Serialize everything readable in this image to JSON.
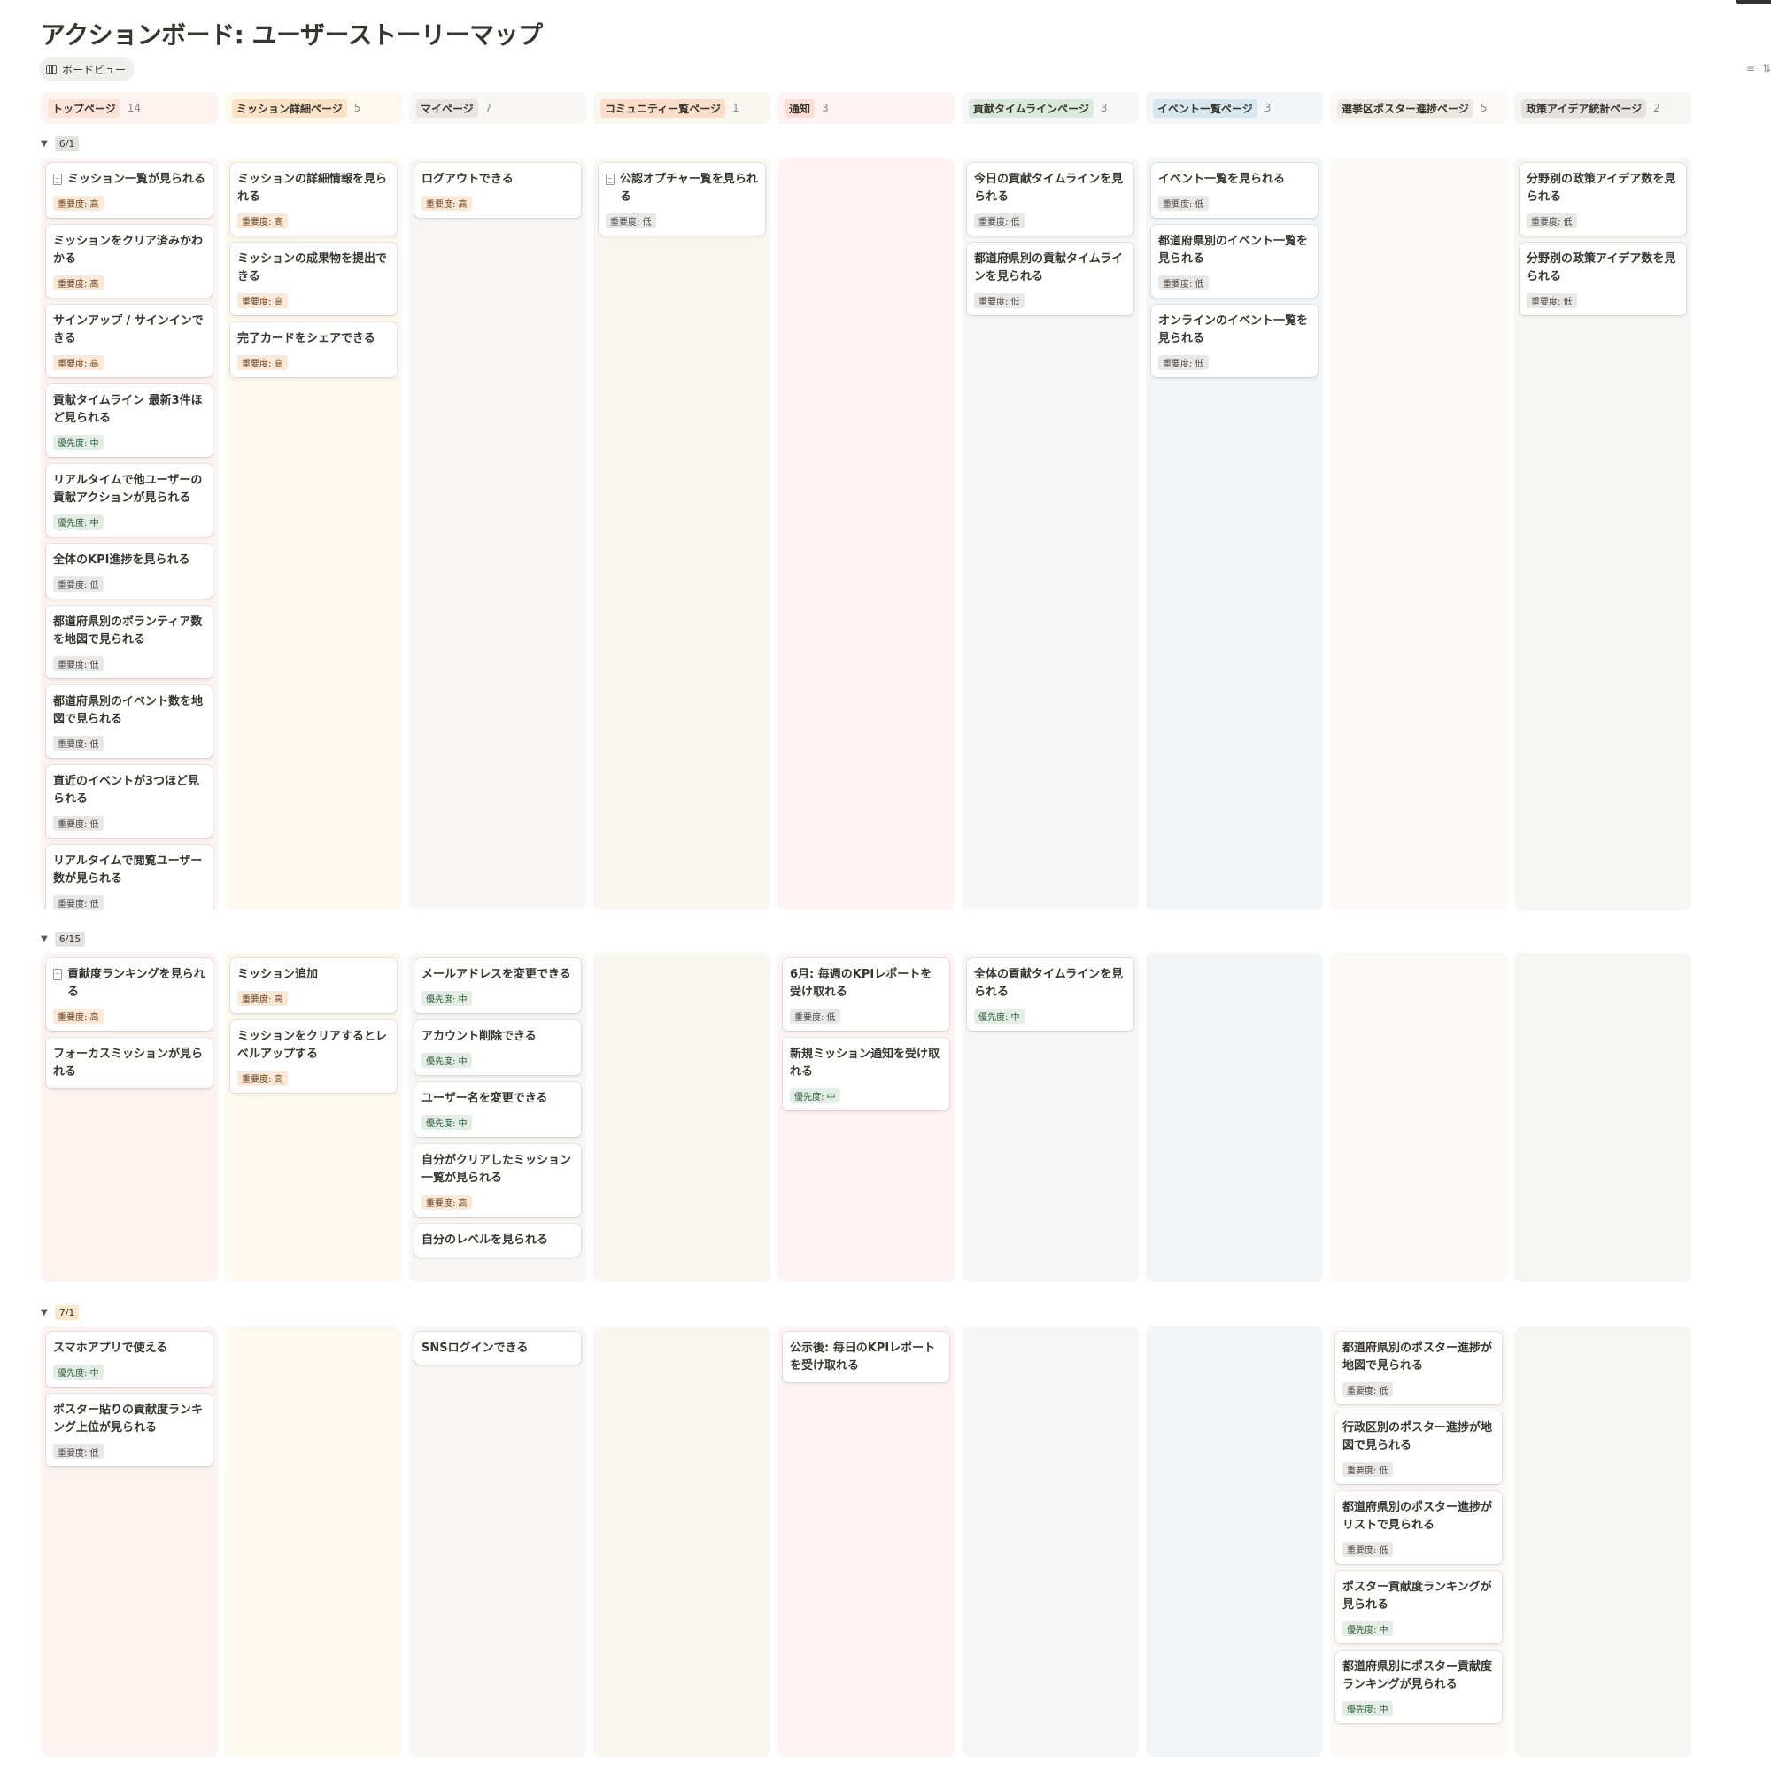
{
  "title": "アクションボード: ユーザーストーリーマップ",
  "view": {
    "label": "ボードビュー",
    "icon": "board-view-icon"
  },
  "toolbar": {
    "filter_icon": "≡",
    "sort_icon": "⇅"
  },
  "colors": {
    "high_badge": "#fae8d8",
    "low_badge": "#e9e8e6",
    "mid_badge": "#e4eee6"
  },
  "columns": [
    {
      "name": "トップページ",
      "count": "14",
      "tag_bg": "#fce3d8",
      "bg": "#fdf4f2"
    },
    {
      "name": "ミッション詳細ページ",
      "count": "5",
      "tag_bg": "#fae2c6",
      "bg": "#fdf9ee"
    },
    {
      "name": "マイページ",
      "count": "7",
      "tag_bg": "#e9e5e3",
      "bg": "#f8f7f5"
    },
    {
      "name": "コミュニティー覧ページ",
      "count": "1",
      "tag_bg": "#fadec9",
      "bg": "#faf6f0"
    },
    {
      "name": "通知",
      "count": "3",
      "tag_bg": "#fbdfd6",
      "bg": "#fdf4f3"
    },
    {
      "name": "貢献タイムラインページ",
      "count": "3",
      "tag_bg": "#dbe8dc",
      "bg": "#f6f7f6"
    },
    {
      "name": "イベント一覧ページ",
      "count": "3",
      "tag_bg": "#d8e6ee",
      "bg": "#f2f6f8"
    },
    {
      "name": "選挙区ポスター進捗ページ",
      "count": "5",
      "tag_bg": "#ece8e4",
      "bg": "#fcf8f8"
    },
    {
      "name": "政策アイデア統計ページ",
      "count": "2",
      "tag_bg": "#e4e2e0",
      "bg": "#f6f6f5"
    }
  ],
  "groups": [
    {
      "label": "6/1",
      "lanes": [
        [
          {
            "title": "ミッション一覧が見られる",
            "doc": true,
            "badge": "重要度: 高",
            "level": "high"
          },
          {
            "title": "ミッションをクリア済みかわかる",
            "badge": "重要度: 高",
            "level": "high"
          },
          {
            "title": "サインアップ / サインインできる",
            "badge": "重要度: 高",
            "level": "high"
          },
          {
            "title": "貢献タイムライン 最新3件ほど見られる",
            "badge": "優先度: 中",
            "level": "mid"
          },
          {
            "title": "リアルタイムで他ユーザーの貢献アクションが見られる",
            "badge": "優先度: 中",
            "level": "mid"
          },
          {
            "title": "全体のKPI進捗を見られる",
            "badge": "重要度: 低",
            "level": "low"
          },
          {
            "title": "都道府県別のボランティア数を地図で見られる",
            "badge": "重要度: 低",
            "level": "low"
          },
          {
            "title": "都道府県別のイベント数を地図で見られる",
            "badge": "重要度: 低",
            "level": "low"
          },
          {
            "title": "直近のイベントが3つほど見られる",
            "badge": "重要度: 低",
            "level": "low"
          },
          {
            "title": "リアルタイムで閲覧ユーザー数が見られる",
            "badge": "重要度: 低",
            "level": "low"
          }
        ],
        [
          {
            "title": "ミッションの詳細情報を見られる",
            "badge": "重要度: 高",
            "level": "high"
          },
          {
            "title": "ミッションの成果物を提出できる",
            "badge": "重要度: 高",
            "level": "high"
          },
          {
            "title": "完了カードをシェアできる",
            "badge": "重要度: 高",
            "level": "high"
          }
        ],
        [
          {
            "title": "ログアウトできる",
            "badge": "重要度: 高",
            "level": "high"
          }
        ],
        [
          {
            "title": "公認オプチャー覧を見られる",
            "doc": true,
            "badge": "重要度: 低",
            "level": "low"
          }
        ],
        [],
        [
          {
            "title": "今日の貢献タイムラインを見られる",
            "badge": "重要度: 低",
            "level": "low"
          },
          {
            "title": "都道府県別の貢献タイムラインを見られる",
            "badge": "重要度: 低",
            "level": "low"
          }
        ],
        [
          {
            "title": "イベント一覧を見られる",
            "badge": "重要度: 低",
            "level": "low"
          },
          {
            "title": "都道府県別のイベント一覧を見られる",
            "badge": "重要度: 低",
            "level": "low"
          },
          {
            "title": "オンラインのイベント一覧を見られる",
            "badge": "重要度: 低",
            "level": "low"
          }
        ],
        [],
        [
          {
            "title": "分野別の政策アイデア数を見られる",
            "badge": "重要度: 低",
            "level": "low"
          },
          {
            "title": "分野別の政策アイデア数を見られる",
            "badge": "重要度: 低",
            "level": "low"
          }
        ]
      ]
    },
    {
      "label": "6/15",
      "lanes": [
        [
          {
            "title": "貢献度ランキングを見られる",
            "doc": true,
            "badge": "重要度: 高",
            "level": "high"
          },
          {
            "title": "フォーカスミッションが見られる"
          }
        ],
        [
          {
            "title": "ミッション追加",
            "badge": "重要度: 高",
            "level": "high"
          },
          {
            "title": "ミッションをクリアするとレベルアップする",
            "badge": "重要度: 高",
            "level": "high"
          }
        ],
        [
          {
            "title": "メールアドレスを変更できる",
            "badge": "優先度: 中",
            "level": "mid"
          },
          {
            "title": "アカウント削除できる",
            "badge": "優先度: 中",
            "level": "mid"
          },
          {
            "title": "ユーザー名を変更できる",
            "badge": "優先度: 中",
            "level": "mid"
          },
          {
            "title": "自分がクリアしたミッション一覧が見られる",
            "badge": "重要度: 高",
            "level": "high"
          },
          {
            "title": "自分のレベルを見られる"
          }
        ],
        [],
        [
          {
            "title": "6月: 毎週のKPIレポートを受け取れる",
            "badge": "重要度: 低",
            "level": "low"
          },
          {
            "title": "新規ミッション通知を受け取れる",
            "badge": "優先度: 中",
            "level": "mid"
          }
        ],
        [
          {
            "title": "全体の貢献タイムラインを見られる",
            "badge": "優先度: 中",
            "level": "mid"
          }
        ],
        [],
        [],
        []
      ]
    },
    {
      "label": "7/1",
      "lanes": [
        [
          {
            "title": "スマホアプリで使える",
            "badge": "優先度: 中",
            "level": "mid"
          },
          {
            "title": "ポスター貼りの貢献度ランキング上位が見られる",
            "badge": "重要度: 低",
            "level": "low"
          }
        ],
        [],
        [
          {
            "title": "SNSログインできる"
          }
        ],
        [],
        [
          {
            "title": "公示後: 毎日のKPIレポートを受け取れる"
          }
        ],
        [],
        [],
        [
          {
            "title": "都道府県別のポスター進捗が地図で見られる",
            "badge": "重要度: 低",
            "level": "low"
          },
          {
            "title": "行政区別のポスター進捗が地図で見られる",
            "badge": "重要度: 低",
            "level": "low"
          },
          {
            "title": "都道府県別のポスター進捗がリストで見られる",
            "badge": "重要度: 低",
            "level": "low"
          },
          {
            "title": "ポスター貢献度ランキングが見られる",
            "badge": "優先度: 中",
            "level": "mid"
          },
          {
            "title": "都道府県別にポスター貢献度ランキングが見られる",
            "badge": "優先度: 中",
            "level": "mid"
          }
        ],
        []
      ]
    }
  ]
}
